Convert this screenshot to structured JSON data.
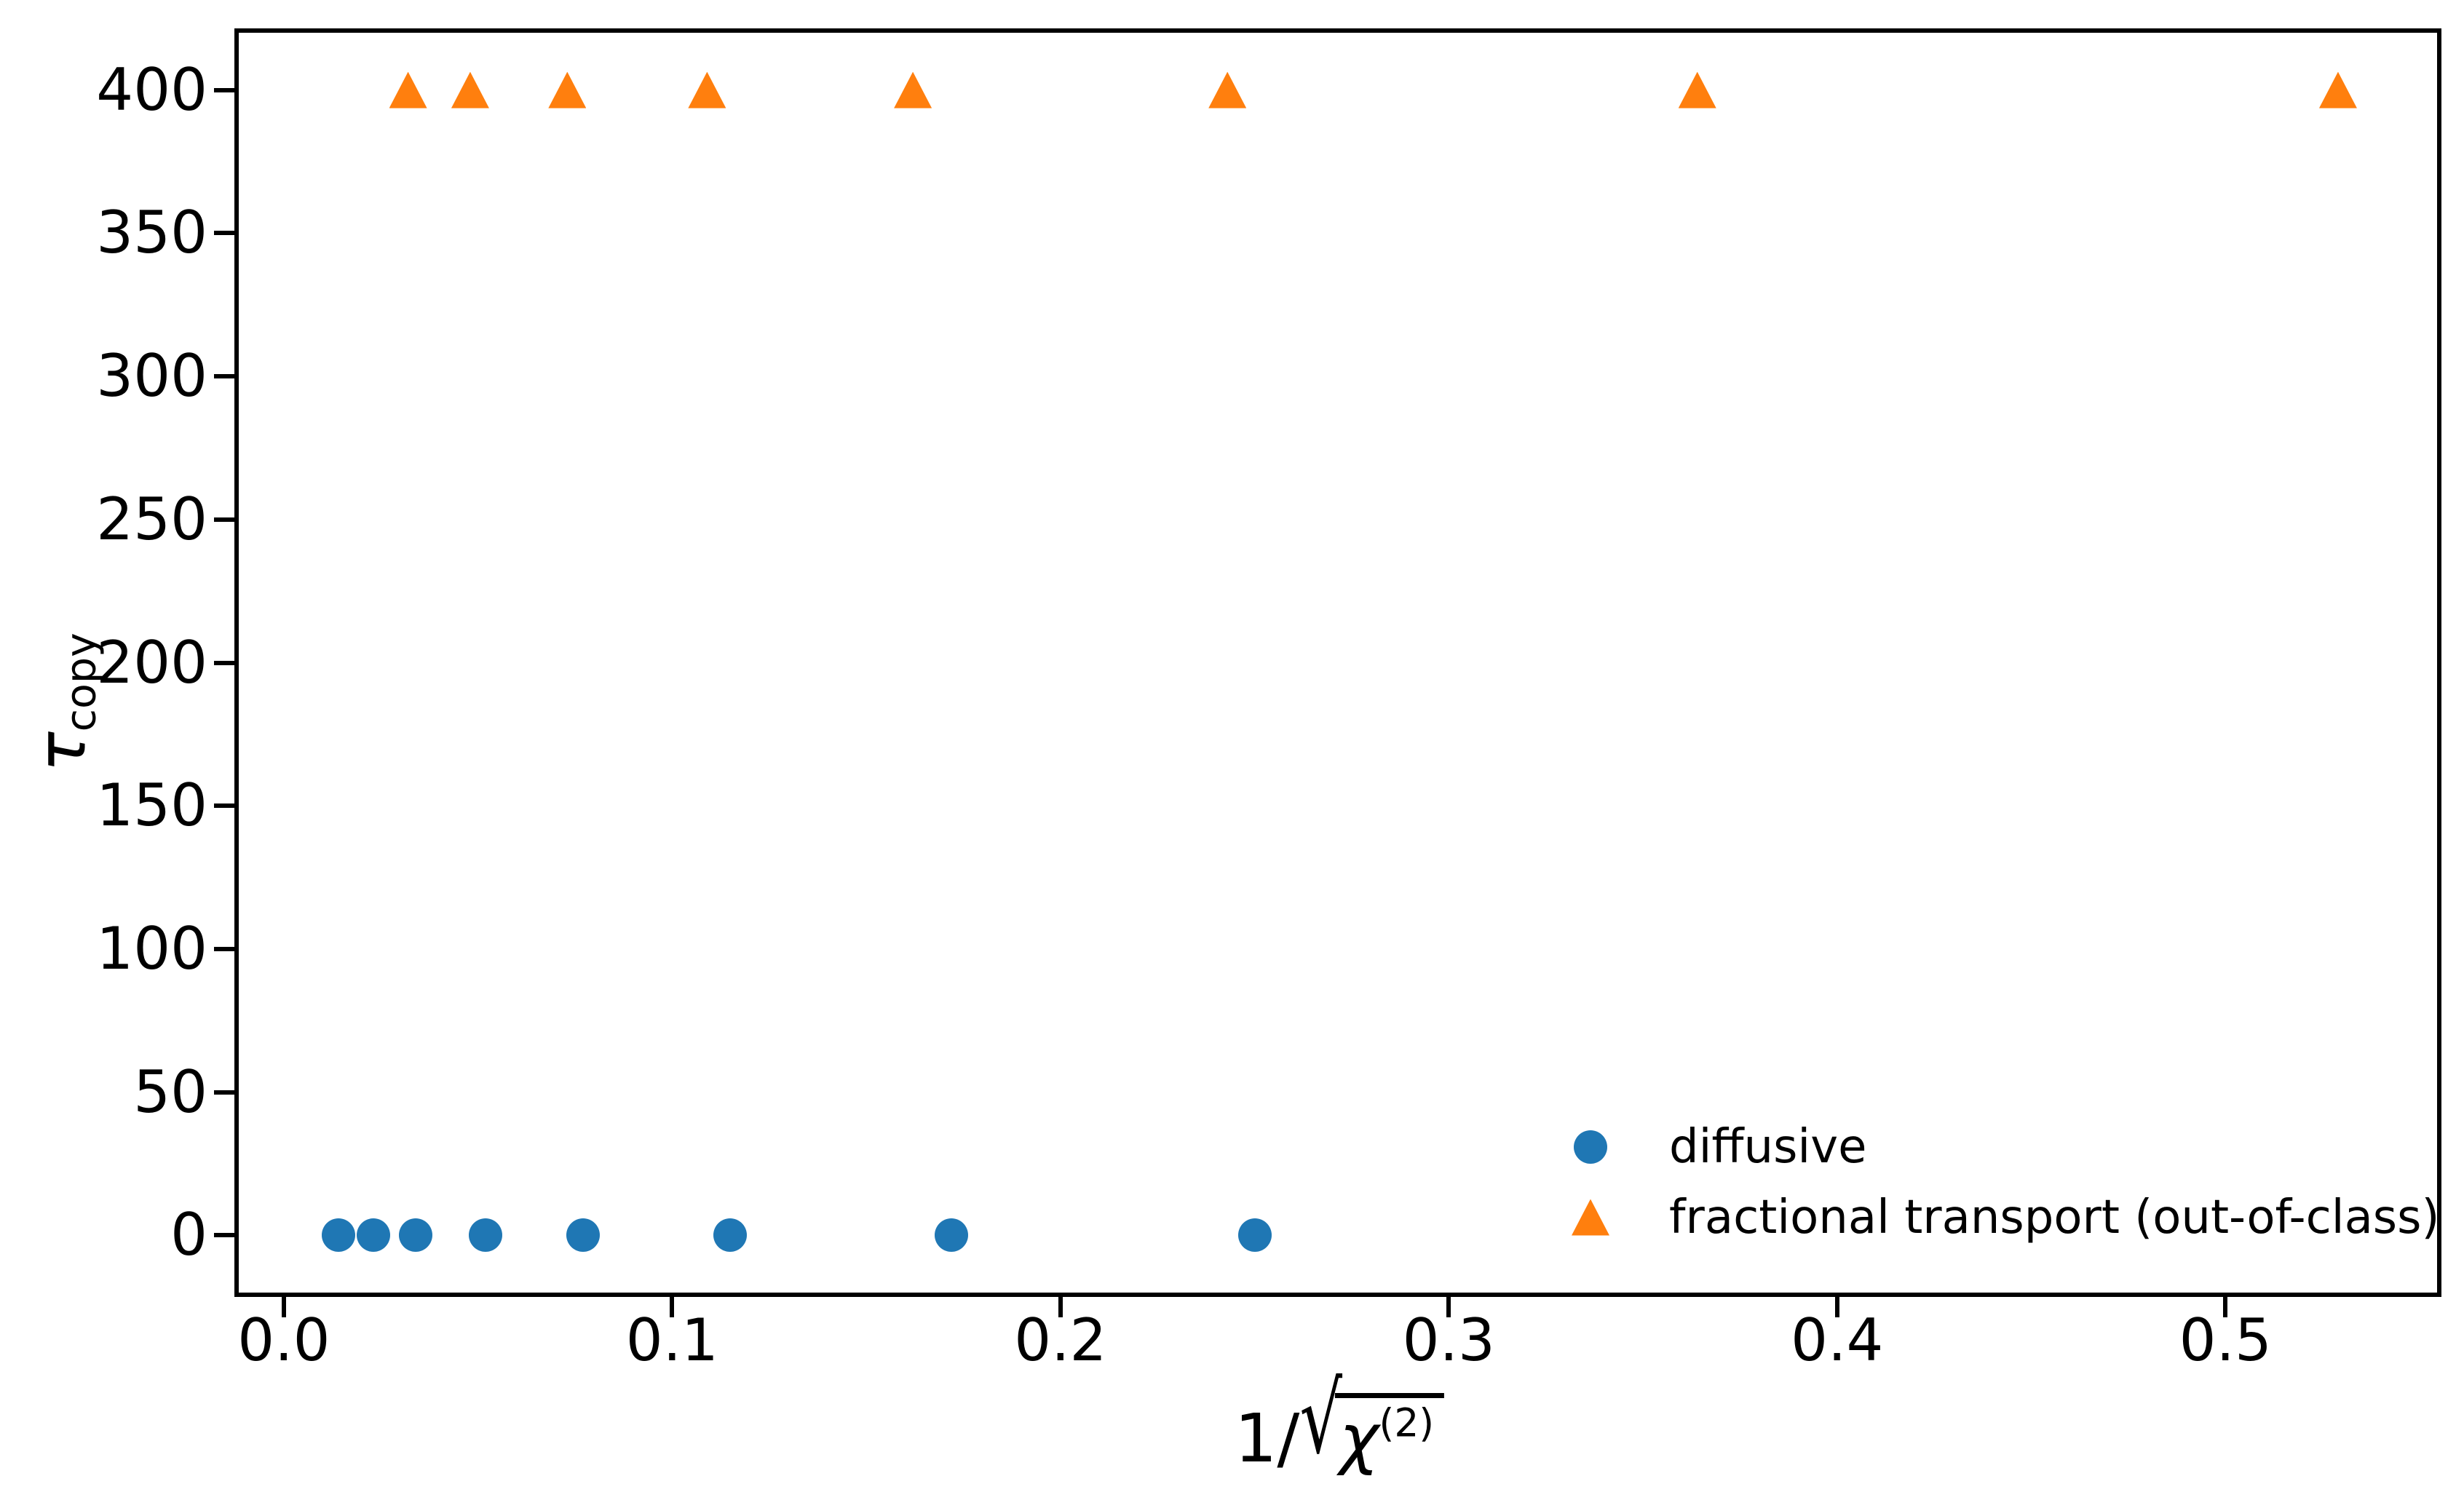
{
  "figure": {
    "background_color": "#ffffff",
    "axes_edge_color": "#000000",
    "tick_color": "#000000"
  },
  "chart_data": {
    "type": "scatter",
    "xlabel": "1/sqrt(chi^(2))",
    "xlabel_display": {
      "prefix": "1/",
      "sqrt_sign": "√",
      "radicand": "χ",
      "superscript": "(2)"
    },
    "ylabel": "tau_copy",
    "ylabel_display": {
      "symbol": "τ",
      "subscript": "copy"
    },
    "xlim": [
      -0.0116,
      0.5545
    ],
    "ylim": [
      -20,
      420
    ],
    "x_ticks": [
      0.0,
      0.1,
      0.2,
      0.3,
      0.4,
      0.5
    ],
    "x_tick_labels": [
      "0.0",
      "0.1",
      "0.2",
      "0.3",
      "0.4",
      "0.5"
    ],
    "y_ticks": [
      0,
      50,
      100,
      150,
      200,
      250,
      300,
      350,
      400
    ],
    "y_tick_labels": [
      "0",
      "50",
      "100",
      "150",
      "200",
      "250",
      "300",
      "350",
      "400"
    ],
    "grid": false,
    "legend": {
      "location": "lower right",
      "frame": false
    },
    "series": [
      {
        "name": "diffusive",
        "marker": "circle",
        "color": "#1f77b4",
        "x": [
          0.014,
          0.023,
          0.034,
          0.052,
          0.077,
          0.115,
          0.172,
          0.25
        ],
        "y": [
          0,
          0,
          0,
          0,
          0,
          0,
          0,
          0
        ]
      },
      {
        "name": "fractional transport (out-of-class)",
        "marker": "triangle-up",
        "color": "#ff7f0e",
        "x": [
          0.032,
          0.048,
          0.073,
          0.109,
          0.162,
          0.243,
          0.364,
          0.529
        ],
        "y": [
          400,
          400,
          400,
          400,
          400,
          400,
          400,
          400
        ]
      }
    ]
  }
}
